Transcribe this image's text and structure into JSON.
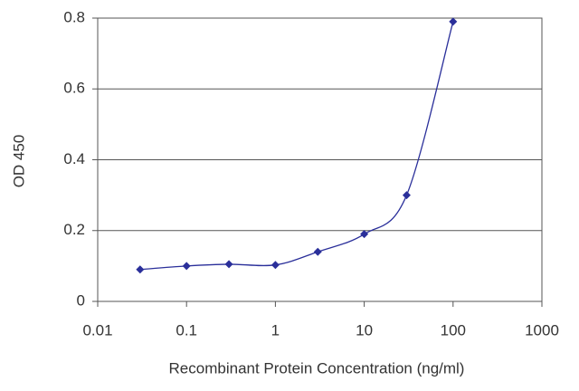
{
  "chart_data": {
    "type": "line",
    "x_label": "Recombinant Protein Concentration (ng/ml)",
    "y_label": "OD 450",
    "x": [
      0.03,
      0.1,
      0.3,
      1,
      3,
      10,
      30,
      100
    ],
    "series": [
      {
        "color": "#2a2f9a",
        "values": [
          0.09,
          0.1,
          0.105,
          0.103,
          0.14,
          0.19,
          0.3,
          0.79
        ]
      }
    ],
    "xlim": [
      0.01,
      1000
    ],
    "xticks": [
      0.01,
      0.1,
      1,
      10,
      100,
      1000
    ],
    "x_log": true,
    "ylim": [
      0,
      0.8
    ],
    "yticks": [
      0,
      0.2,
      0.4,
      0.6,
      0.8
    ],
    "grid": true
  }
}
